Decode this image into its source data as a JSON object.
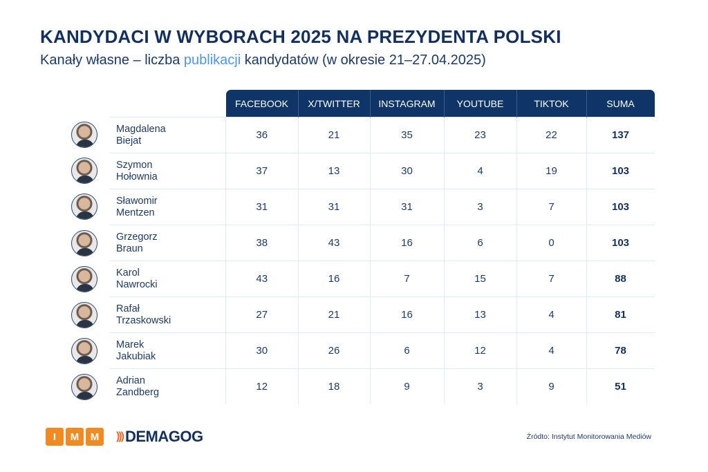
{
  "title": "KANDYDACI W WYBORACH 2025 NA PREZYDENTA POLSKI",
  "subtitle": {
    "before": "Kanały własne – liczba ",
    "highlight": "publikacji",
    "after": " kandydatów (w okresie 21–27.04.2025)"
  },
  "colors": {
    "header": "#0f3568",
    "highlight": "#4b97f0",
    "imm_orange": "#f28a21"
  },
  "columns": [
    "FACEBOOK",
    "X/TWITTER",
    "INSTAGRAM",
    "YOUTUBE",
    "TIKTOK",
    "SUMA"
  ],
  "rows": [
    {
      "first": "Magdalena",
      "last": "Biejat",
      "values": [
        "36",
        "21",
        "35",
        "23",
        "22",
        "137"
      ]
    },
    {
      "first": "Szymon",
      "last": "Hołownia",
      "values": [
        "37",
        "13",
        "30",
        "4",
        "19",
        "103"
      ]
    },
    {
      "first": "Sławomir",
      "last": "Mentzen",
      "values": [
        "31",
        "31",
        "31",
        "3",
        "7",
        "103"
      ]
    },
    {
      "first": "Grzegorz",
      "last": "Braun",
      "values": [
        "38",
        "43",
        "16",
        "6",
        "0",
        "103"
      ]
    },
    {
      "first": "Karol",
      "last": "Nawrocki",
      "values": [
        "43",
        "16",
        "7",
        "15",
        "7",
        "88"
      ]
    },
    {
      "first": "Rafał",
      "last": "Trzaskowski",
      "values": [
        "27",
        "21",
        "16",
        "13",
        "4",
        "81"
      ]
    },
    {
      "first": "Marek",
      "last": "Jakubiak",
      "values": [
        "30",
        "26",
        "6",
        "12",
        "4",
        "78"
      ]
    },
    {
      "first": "Adrian",
      "last": "Zandberg",
      "values": [
        "12",
        "18",
        "9",
        "3",
        "9",
        "51"
      ]
    }
  ],
  "footer": {
    "imm_letters": [
      "I",
      "M",
      "M"
    ],
    "demagog": "DEMAGOG",
    "source": "Źródto: Instytut Monitorowania Mediów"
  }
}
